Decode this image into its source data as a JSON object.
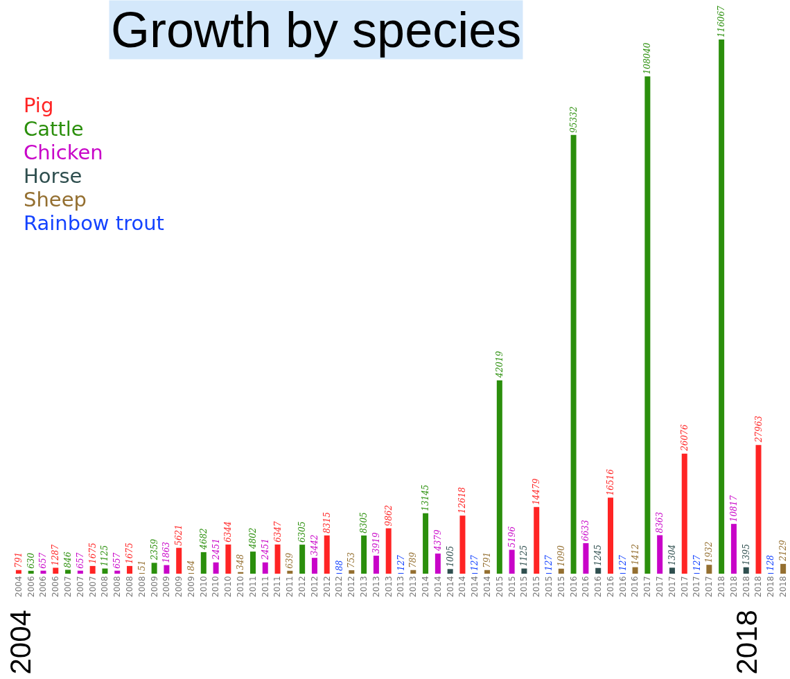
{
  "chart_data": {
    "type": "bar",
    "title": "Growth by species",
    "categories": [
      "2004",
      "2006",
      "2006",
      "2006",
      "2007",
      "2007",
      "2007",
      "2008",
      "2008",
      "2008",
      "2008",
      "2009",
      "2009",
      "2009",
      "2009",
      "2010",
      "2010",
      "2010",
      "2010",
      "2011",
      "2011",
      "2011",
      "2011",
      "2012",
      "2012",
      "2012",
      "2012",
      "2012",
      "2013",
      "2013",
      "2013",
      "2013",
      "2013",
      "2014",
      "2014",
      "2014",
      "2014",
      "2014",
      "2014",
      "2015",
      "2015",
      "2015",
      "2015",
      "2015",
      "2015",
      "2016",
      "2016",
      "2016",
      "2016",
      "2016",
      "2016",
      "2017",
      "2017",
      "2017",
      "2017",
      "2017",
      "2017",
      "2018",
      "2018",
      "2018",
      "2018",
      "2018",
      "2018"
    ],
    "series": [
      {
        "name": "Pig",
        "color": "#ff2424",
        "values": [
          791,
          null,
          null,
          1287,
          null,
          null,
          1675,
          null,
          null,
          1675,
          null,
          null,
          null,
          5621,
          null,
          null,
          null,
          6344,
          null,
          null,
          null,
          6347,
          null,
          null,
          null,
          8315,
          null,
          null,
          null,
          null,
          9862,
          null,
          null,
          null,
          null,
          null,
          12618,
          null,
          null,
          null,
          null,
          null,
          14479,
          null,
          null,
          null,
          null,
          null,
          16516,
          null,
          null,
          null,
          null,
          null,
          26076,
          null,
          null,
          null,
          null,
          null,
          27963,
          null,
          null
        ]
      },
      {
        "name": "Cattle",
        "color": "#2b8f0c",
        "values": [
          null,
          630,
          null,
          null,
          846,
          null,
          null,
          1125,
          null,
          null,
          null,
          2359,
          null,
          null,
          null,
          4682,
          null,
          null,
          null,
          4802,
          null,
          null,
          null,
          6305,
          null,
          null,
          null,
          null,
          8305,
          null,
          null,
          null,
          null,
          13145,
          null,
          null,
          null,
          null,
          null,
          42019,
          null,
          null,
          null,
          null,
          null,
          95332,
          null,
          null,
          null,
          null,
          null,
          108040,
          null,
          null,
          null,
          null,
          null,
          116067,
          null,
          null,
          null,
          null,
          null
        ]
      },
      {
        "name": "Chicken",
        "color": "#c804c8",
        "values": [
          null,
          null,
          657,
          null,
          null,
          657,
          null,
          null,
          657,
          null,
          null,
          null,
          1863,
          null,
          null,
          null,
          2451,
          null,
          null,
          null,
          2451,
          null,
          null,
          null,
          3442,
          null,
          null,
          null,
          null,
          3919,
          null,
          null,
          null,
          null,
          4379,
          null,
          null,
          null,
          null,
          null,
          5196,
          null,
          null,
          null,
          null,
          null,
          6633,
          null,
          null,
          null,
          null,
          null,
          8363,
          null,
          null,
          null,
          null,
          null,
          10817,
          null,
          null,
          null,
          null
        ]
      },
      {
        "name": "Horse",
        "color": "#2f4f4f",
        "values": [
          null,
          null,
          null,
          null,
          null,
          null,
          null,
          null,
          null,
          null,
          null,
          null,
          null,
          null,
          null,
          null,
          null,
          null,
          null,
          null,
          null,
          null,
          null,
          null,
          null,
          null,
          null,
          null,
          null,
          null,
          null,
          null,
          null,
          null,
          null,
          1005,
          null,
          null,
          null,
          null,
          null,
          1125,
          null,
          null,
          null,
          null,
          null,
          1245,
          null,
          null,
          null,
          null,
          null,
          1304,
          null,
          null,
          null,
          null,
          null,
          1395,
          null,
          null,
          null
        ]
      },
      {
        "name": "Sheep",
        "color": "#946f30",
        "values": [
          null,
          null,
          null,
          null,
          null,
          null,
          null,
          null,
          null,
          null,
          51,
          null,
          null,
          null,
          84,
          null,
          null,
          null,
          348,
          null,
          null,
          null,
          639,
          null,
          null,
          null,
          null,
          753,
          null,
          null,
          null,
          null,
          789,
          null,
          null,
          null,
          null,
          null,
          791,
          null,
          null,
          null,
          null,
          null,
          1090,
          null,
          null,
          null,
          null,
          null,
          1412,
          null,
          null,
          null,
          null,
          null,
          1932,
          null,
          null,
          null,
          null,
          null,
          2129
        ]
      },
      {
        "name": "Rainbow trout",
        "color": "#1443ff",
        "values": [
          null,
          null,
          null,
          null,
          null,
          null,
          null,
          null,
          null,
          null,
          null,
          null,
          null,
          null,
          null,
          null,
          null,
          null,
          null,
          null,
          null,
          null,
          null,
          null,
          null,
          null,
          88,
          null,
          null,
          null,
          null,
          127,
          null,
          null,
          null,
          null,
          null,
          127,
          null,
          null,
          null,
          null,
          null,
          127,
          null,
          null,
          null,
          null,
          null,
          127,
          null,
          null,
          null,
          null,
          null,
          127,
          null,
          null,
          null,
          null,
          null,
          128,
          null
        ]
      }
    ],
    "data_labels": true,
    "legend": "top left",
    "tick_labels": "x",
    "annotations": [
      "2004",
      "2018"
    ]
  }
}
